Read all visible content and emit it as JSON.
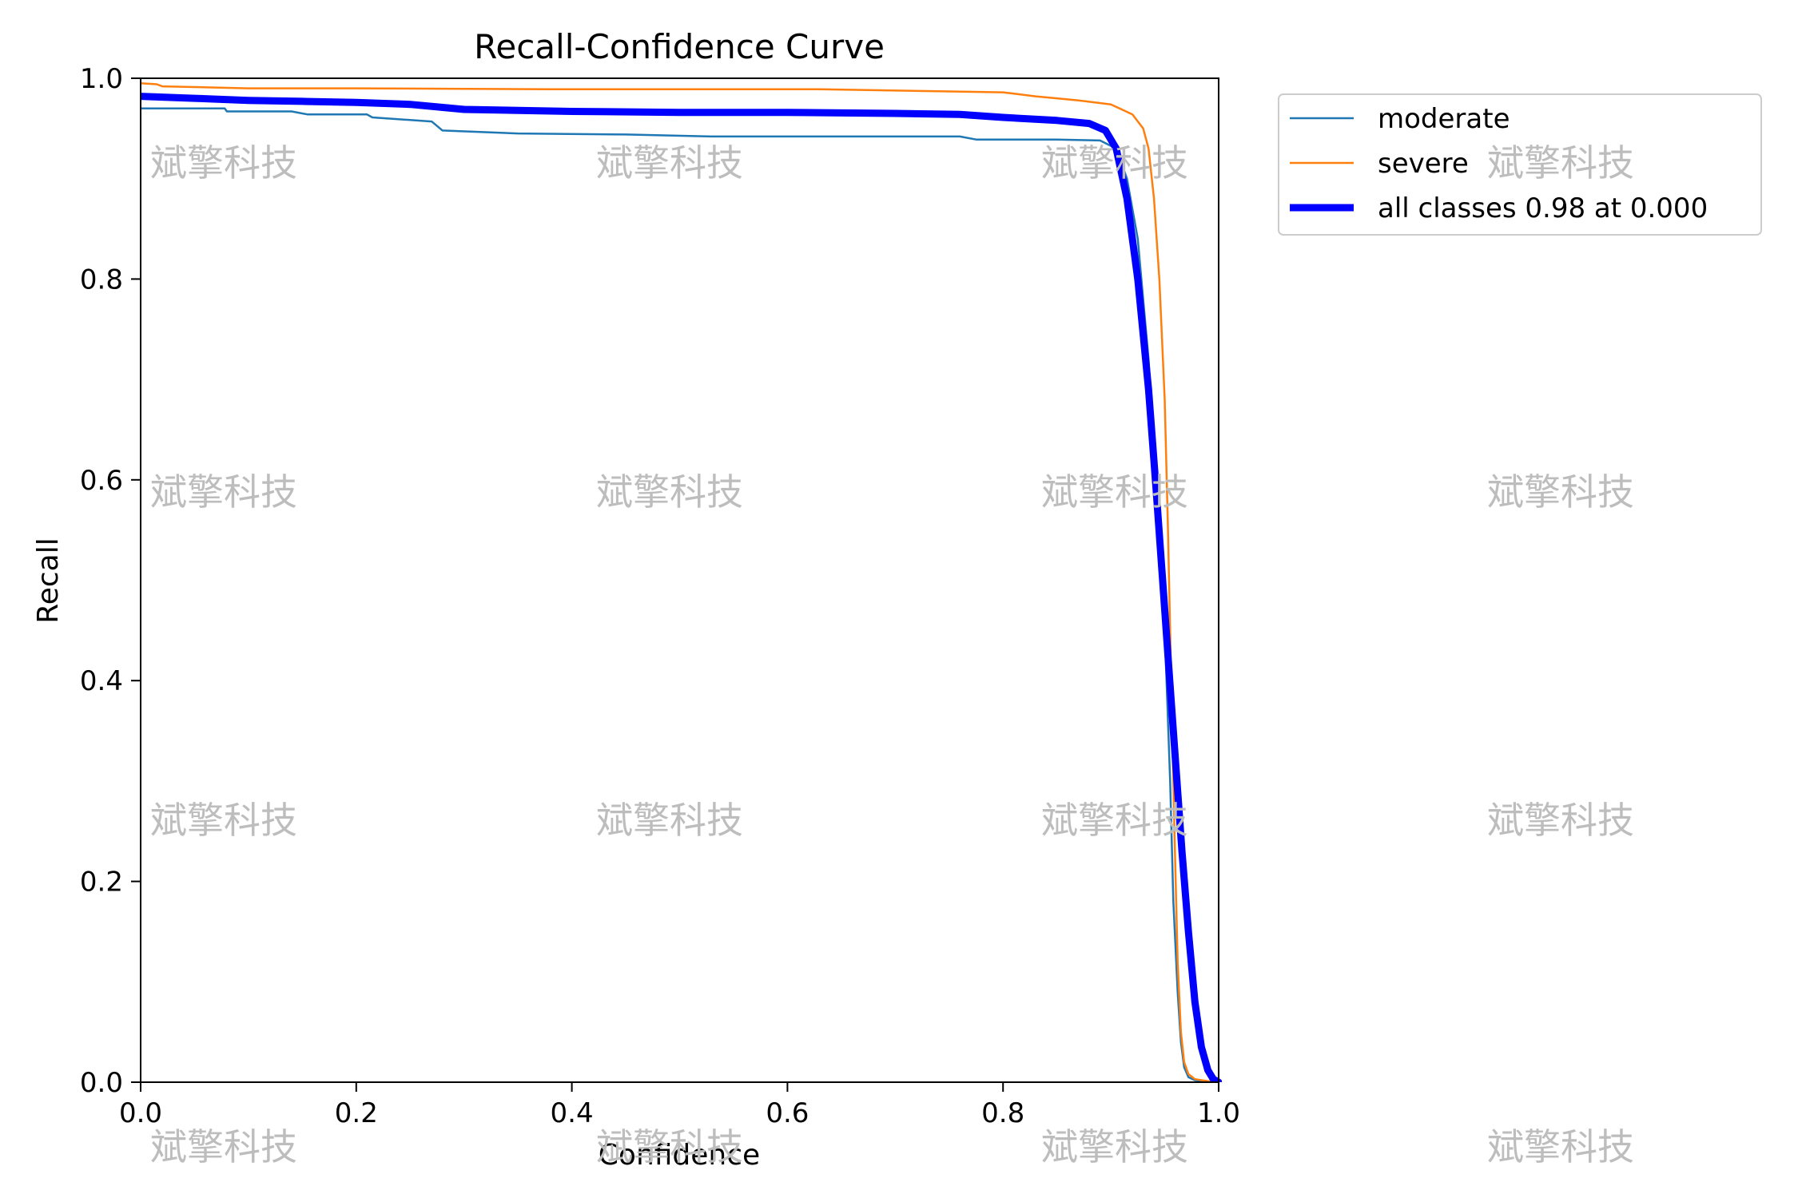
{
  "chart_data": {
    "type": "line",
    "title": "Recall-Confidence Curve",
    "xlabel": "Confidence",
    "ylabel": "Recall",
    "xlim": [
      0,
      1
    ],
    "ylim": [
      0,
      1
    ],
    "x_ticks": [
      "0.0",
      "0.2",
      "0.4",
      "0.6",
      "0.8",
      "1.0"
    ],
    "y_ticks": [
      "0.0",
      "0.2",
      "0.4",
      "0.6",
      "0.8",
      "1.0"
    ],
    "grid": false,
    "legend_position": "outside-top-right",
    "series": [
      {
        "name": "moderate",
        "color": "#1f77b4",
        "x": [
          0,
          0.05,
          0.078,
          0.08,
          0.14,
          0.155,
          0.21,
          0.215,
          0.27,
          0.28,
          0.35,
          0.45,
          0.53,
          0.6,
          0.76,
          0.775,
          0.85,
          0.89,
          0.905,
          0.915,
          0.925,
          0.935,
          0.945,
          0.95,
          0.955,
          0.958,
          0.962,
          0.965,
          0.968,
          0.972,
          0.978,
          0.99,
          1.0
        ],
        "y": [
          0.97,
          0.97,
          0.97,
          0.967,
          0.967,
          0.964,
          0.964,
          0.961,
          0.957,
          0.948,
          0.945,
          0.944,
          0.942,
          0.942,
          0.942,
          0.939,
          0.939,
          0.938,
          0.93,
          0.9,
          0.84,
          0.72,
          0.55,
          0.45,
          0.3,
          0.18,
          0.09,
          0.04,
          0.015,
          0.005,
          0.002,
          0.001,
          0
        ]
      },
      {
        "name": "severe",
        "color": "#ff7f0e",
        "x": [
          0,
          0.015,
          0.02,
          0.1,
          0.2,
          0.38,
          0.5,
          0.63,
          0.74,
          0.8,
          0.83,
          0.85,
          0.87,
          0.9,
          0.92,
          0.93,
          0.935,
          0.94,
          0.945,
          0.95,
          0.953,
          0.956,
          0.959,
          0.962,
          0.965,
          0.968,
          0.972,
          0.978,
          0.99,
          1.0
        ],
        "y": [
          0.995,
          0.994,
          0.992,
          0.99,
          0.99,
          0.989,
          0.989,
          0.989,
          0.987,
          0.986,
          0.982,
          0.98,
          0.978,
          0.974,
          0.964,
          0.95,
          0.93,
          0.88,
          0.8,
          0.68,
          0.55,
          0.4,
          0.25,
          0.12,
          0.05,
          0.02,
          0.008,
          0.003,
          0.001,
          0
        ]
      },
      {
        "name": "all classes 0.98 at 0.000",
        "color": "#0000ff",
        "thick": true,
        "x": [
          0,
          0.05,
          0.1,
          0.15,
          0.2,
          0.25,
          0.3,
          0.4,
          0.5,
          0.6,
          0.7,
          0.76,
          0.8,
          0.85,
          0.88,
          0.895,
          0.905,
          0.915,
          0.925,
          0.935,
          0.942,
          0.948,
          0.954,
          0.96,
          0.966,
          0.972,
          0.978,
          0.984,
          0.99,
          0.995,
          1.0
        ],
        "y": [
          0.982,
          0.98,
          0.978,
          0.977,
          0.976,
          0.974,
          0.969,
          0.967,
          0.966,
          0.966,
          0.965,
          0.964,
          0.961,
          0.958,
          0.955,
          0.948,
          0.93,
          0.88,
          0.8,
          0.69,
          0.59,
          0.5,
          0.41,
          0.32,
          0.23,
          0.15,
          0.08,
          0.035,
          0.012,
          0.003,
          0
        ]
      }
    ]
  },
  "watermark": {
    "text": "斌擎科技"
  }
}
